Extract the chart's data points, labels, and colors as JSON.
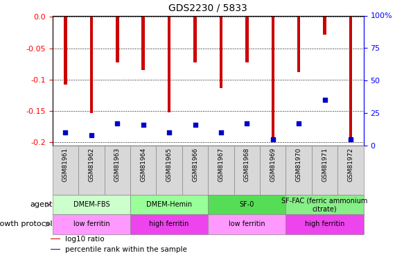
{
  "title": "GDS2230 / 5833",
  "samples": [
    "GSM81961",
    "GSM81962",
    "GSM81963",
    "GSM81964",
    "GSM81965",
    "GSM81966",
    "GSM81967",
    "GSM81968",
    "GSM81969",
    "GSM81970",
    "GSM81971",
    "GSM81972"
  ],
  "log10_ratio": [
    -0.108,
    -0.153,
    -0.073,
    -0.085,
    -0.152,
    -0.073,
    -0.113,
    -0.073,
    -0.2,
    -0.088,
    -0.028,
    -0.196
  ],
  "percentile_rank": [
    10,
    8,
    17,
    16,
    10,
    16,
    10,
    17,
    5,
    17,
    35,
    5
  ],
  "ylim_left": [
    -0.205,
    0.002
  ],
  "ylim_right": [
    0,
    100
  ],
  "yticks_left": [
    0.0,
    -0.05,
    -0.1,
    -0.15,
    -0.2
  ],
  "yticks_right": [
    0,
    25,
    50,
    75,
    100
  ],
  "bar_color": "#cc0000",
  "dot_color": "#0000cc",
  "agent_groups": [
    {
      "label": "DMEM-FBS",
      "start": 0,
      "end": 2,
      "color": "#ccffcc"
    },
    {
      "label": "DMEM-Hemin",
      "start": 3,
      "end": 5,
      "color": "#99ff99"
    },
    {
      "label": "SF-0",
      "start": 6,
      "end": 8,
      "color": "#55dd55"
    },
    {
      "label": "SF-FAC (ferric ammonium\ncitrate)",
      "start": 9,
      "end": 11,
      "color": "#88ee88"
    }
  ],
  "growth_groups": [
    {
      "label": "low ferritin",
      "start": 0,
      "end": 2,
      "color": "#ff99ff"
    },
    {
      "label": "high ferritin",
      "start": 3,
      "end": 5,
      "color": "#ee44ee"
    },
    {
      "label": "low ferritin",
      "start": 6,
      "end": 8,
      "color": "#ff99ff"
    },
    {
      "label": "high ferritin",
      "start": 9,
      "end": 11,
      "color": "#ee44ee"
    }
  ],
  "agent_label": "agent",
  "growth_label": "growth protocol",
  "legend_items": [
    {
      "label": "log10 ratio",
      "color": "#cc0000"
    },
    {
      "label": "percentile rank within the sample",
      "color": "#0000cc"
    }
  ],
  "bar_width": 0.12,
  "dot_size": 18
}
